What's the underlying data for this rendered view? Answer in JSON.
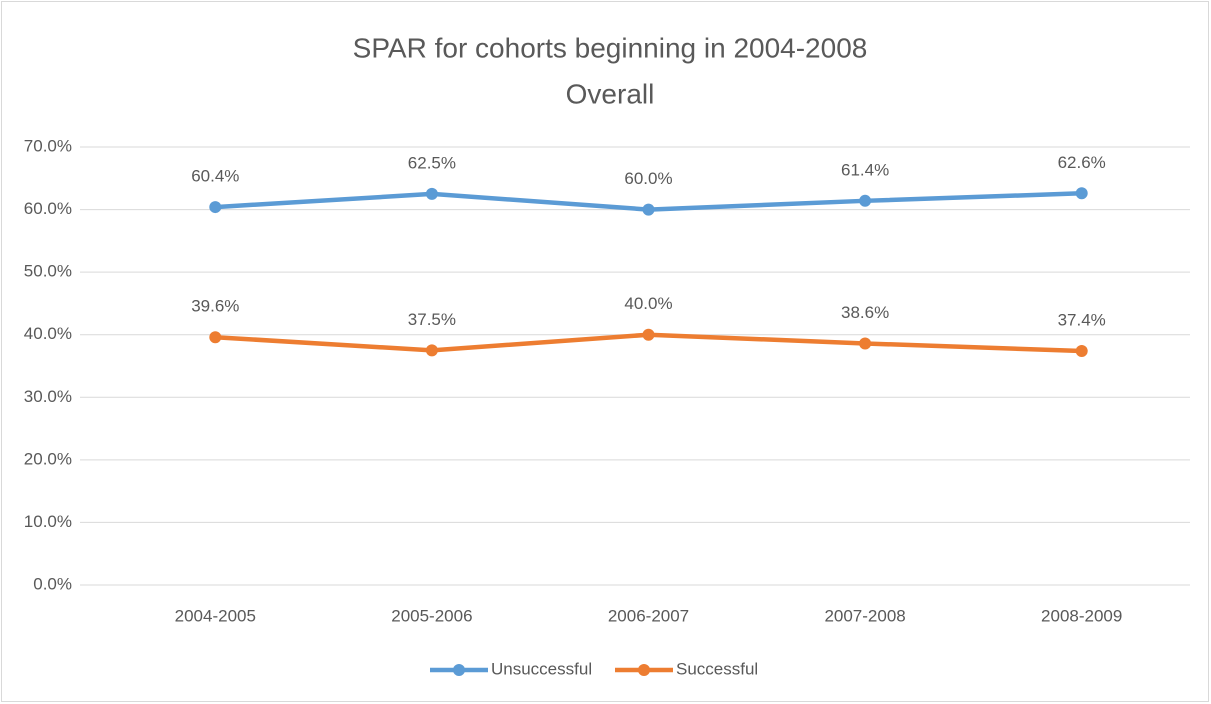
{
  "chart_data": {
    "type": "line",
    "title": "SPAR for cohorts beginning in 2004-2008",
    "subtitle": "Overall",
    "categories": [
      "2004-2005",
      "2005-2006",
      "2006-2007",
      "2007-2008",
      "2008-2009"
    ],
    "series": [
      {
        "name": "Unsuccessful",
        "color": "#5b9bd5",
        "values": [
          60.4,
          62.5,
          60.0,
          61.4,
          62.6
        ],
        "value_labels": [
          "60.4%",
          "62.5%",
          "60.0%",
          "61.4%",
          "62.6%"
        ]
      },
      {
        "name": "Successful",
        "color": "#ed7d31",
        "values": [
          39.6,
          37.5,
          40.0,
          38.6,
          37.4
        ],
        "value_labels": [
          "39.6%",
          "37.5%",
          "40.0%",
          "38.6%",
          "37.4%"
        ]
      }
    ],
    "ylim": [
      0,
      70
    ],
    "yticks": [
      {
        "value": 0,
        "label": "0.0%"
      },
      {
        "value": 10,
        "label": "10.0%"
      },
      {
        "value": 20,
        "label": "20.0%"
      },
      {
        "value": 30,
        "label": "30.0%"
      },
      {
        "value": 40,
        "label": "40.0%"
      },
      {
        "value": 50,
        "label": "50.0%"
      },
      {
        "value": 60,
        "label": "60.0%"
      },
      {
        "value": 70,
        "label": "70.0%"
      }
    ],
    "grid": true,
    "legend": "bottom"
  }
}
